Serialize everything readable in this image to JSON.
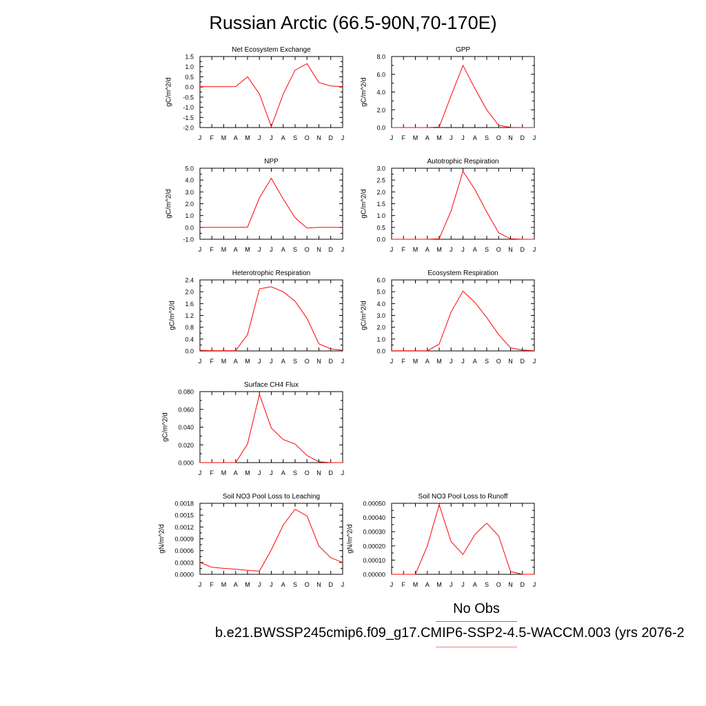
{
  "figure": {
    "title": "Russian Arctic (66.5-90N,70-170E)",
    "legend_no_obs": "No Obs",
    "legend_case": "b.e21.BWSSP245cmip6.f09_g17.CMIP6-SSP2-4.5-WACCM.003 (yrs 2076-2",
    "colors": {
      "model_line": "#ff0000",
      "obs_legend_line": "#6d6de8",
      "case_legend_line": "#f08080"
    }
  },
  "chart_data": [
    {
      "type": "line",
      "title": "Net Ecosystem Exchange",
      "ylabel": "gC/m^2/d",
      "categories": [
        "J",
        "F",
        "M",
        "A",
        "M",
        "J",
        "J",
        "A",
        "S",
        "O",
        "N",
        "D",
        "J"
      ],
      "yticks": [
        "-2.0",
        "-1.5",
        "-1.0",
        "-0.5",
        "0.0",
        "0.5",
        "1.0",
        "1.5"
      ],
      "ylim": [
        -2.0,
        1.5
      ],
      "values": [
        0.02,
        0.01,
        0.01,
        0.02,
        0.5,
        -0.35,
        -1.95,
        -0.35,
        0.83,
        1.15,
        0.22,
        0.05,
        0.02
      ]
    },
    {
      "type": "line",
      "title": "GPP",
      "ylabel": "gC/m^2/d",
      "categories": [
        "J",
        "F",
        "M",
        "A",
        "M",
        "J",
        "J",
        "A",
        "S",
        "O",
        "N",
        "D",
        "J"
      ],
      "yticks": [
        "0.0",
        "2.0",
        "4.0",
        "6.0",
        "8.0"
      ],
      "ylim": [
        0,
        8
      ],
      "values": [
        0,
        0,
        0,
        0,
        0.05,
        3.6,
        7.0,
        4.4,
        2.0,
        0.25,
        0.02,
        0,
        0
      ]
    },
    {
      "type": "line",
      "title": "NPP",
      "ylabel": "gC/m^2/d",
      "categories": [
        "J",
        "F",
        "M",
        "A",
        "M",
        "J",
        "J",
        "A",
        "S",
        "O",
        "N",
        "D",
        "J"
      ],
      "yticks": [
        "-1.0",
        "0.0",
        "1.0",
        "2.0",
        "3.0",
        "4.0",
        "5.0"
      ],
      "ylim": [
        -1,
        5
      ],
      "values": [
        0,
        0,
        0,
        0,
        0.02,
        2.5,
        4.15,
        2.4,
        0.82,
        -0.05,
        0,
        0,
        0
      ]
    },
    {
      "type": "line",
      "title": "Autotrophic Respiration",
      "ylabel": "gC/m^2/d",
      "categories": [
        "J",
        "F",
        "M",
        "A",
        "M",
        "J",
        "J",
        "A",
        "S",
        "O",
        "N",
        "D",
        "J"
      ],
      "yticks": [
        "0.0",
        "0.5",
        "1.0",
        "1.5",
        "2.0",
        "2.5",
        "3.0"
      ],
      "ylim": [
        0,
        3
      ],
      "values": [
        0,
        0,
        0,
        0,
        0.02,
        1.2,
        2.87,
        2.1,
        1.15,
        0.27,
        0.02,
        0,
        0
      ]
    },
    {
      "type": "line",
      "title": "Heterotrophic Respiration",
      "ylabel": "gC/m^2/d",
      "categories": [
        "J",
        "F",
        "M",
        "A",
        "M",
        "J",
        "J",
        "A",
        "S",
        "O",
        "N",
        "D",
        "J"
      ],
      "yticks": [
        "0.0",
        "0.4",
        "0.8",
        "1.2",
        "1.6",
        "2.0",
        "2.4"
      ],
      "ylim": [
        0,
        2.4
      ],
      "values": [
        0.02,
        0.01,
        0.01,
        0.01,
        0.55,
        2.1,
        2.17,
        2.0,
        1.68,
        1.1,
        0.24,
        0.07,
        0.02
      ]
    },
    {
      "type": "line",
      "title": "Ecosystem Respiration",
      "ylabel": "gC/m^2/d",
      "categories": [
        "J",
        "F",
        "M",
        "A",
        "M",
        "J",
        "J",
        "A",
        "S",
        "O",
        "N",
        "D",
        "J"
      ],
      "yticks": [
        "0.0",
        "1.0",
        "2.0",
        "3.0",
        "4.0",
        "5.0",
        "6.0"
      ],
      "ylim": [
        0,
        6
      ],
      "values": [
        0.02,
        0.01,
        0.01,
        0.02,
        0.57,
        3.3,
        5.05,
        4.1,
        2.82,
        1.38,
        0.26,
        0.07,
        0.02
      ]
    },
    {
      "type": "line",
      "title": "Surface CH4 Flux",
      "ylabel": "gC/m^2/d",
      "categories": [
        "J",
        "F",
        "M",
        "A",
        "M",
        "J",
        "J",
        "A",
        "S",
        "O",
        "N",
        "D",
        "J"
      ],
      "yticks": [
        "0.000",
        "0.020",
        "0.040",
        "0.060",
        "0.080"
      ],
      "ylim": [
        0,
        0.08
      ],
      "values": [
        0,
        0,
        0,
        0,
        0.021,
        0.077,
        0.039,
        0.026,
        0.021,
        0.008,
        0.001,
        0,
        0
      ]
    },
    {
      "type": "line",
      "title": "Soil NO3 Pool Loss to Leaching",
      "ylabel": "gN/m^2/d",
      "categories": [
        "J",
        "F",
        "M",
        "A",
        "M",
        "J",
        "J",
        "A",
        "S",
        "O",
        "N",
        "D",
        "J"
      ],
      "yticks": [
        "0.0000",
        "0.0003",
        "0.0006",
        "0.0009",
        "0.0012",
        "0.0015",
        "0.0018"
      ],
      "ylim": [
        0,
        0.0018
      ],
      "values": [
        0.0003,
        0.00018,
        0.00015,
        0.00013,
        0.0001,
        8e-05,
        0.00062,
        0.00125,
        0.00165,
        0.00148,
        0.00072,
        0.00042,
        0.0003
      ]
    },
    {
      "type": "line",
      "title": "Soil NO3 Pool Loss to Runoff",
      "ylabel": "gN/m^2/d",
      "categories": [
        "J",
        "F",
        "M",
        "A",
        "M",
        "J",
        "J",
        "A",
        "S",
        "O",
        "N",
        "D",
        "J"
      ],
      "yticks": [
        "0.00000",
        "0.00010",
        "0.00020",
        "0.00030",
        "0.00040",
        "0.00050"
      ],
      "ylim": [
        0,
        0.0005
      ],
      "values": [
        0,
        0,
        0,
        0.0002,
        0.00049,
        0.00023,
        0.00014,
        0.00028,
        0.00036,
        0.00027,
        2e-05,
        0,
        0
      ]
    }
  ]
}
